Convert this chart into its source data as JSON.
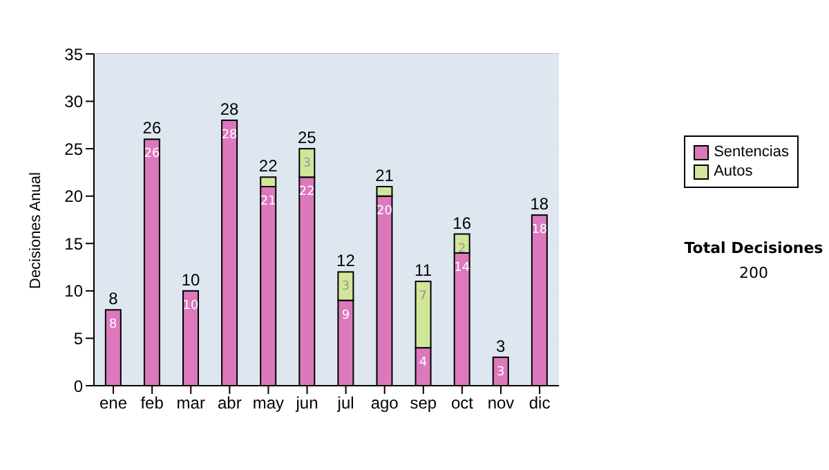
{
  "chart_data": {
    "type": "bar",
    "ylabel": "Decisiones Anual",
    "categories": [
      "ene",
      "feb",
      "mar",
      "abr",
      "may",
      "jun",
      "jul",
      "ago",
      "sep",
      "oct",
      "nov",
      "dic"
    ],
    "series": [
      {
        "name": "Sentencias",
        "color": "#dc78bc",
        "values": [
          8,
          26,
          10,
          28,
          21,
          22,
          9,
          20,
          4,
          14,
          3,
          18
        ],
        "value_labels": [
          "8",
          "26",
          "10",
          "28",
          "21",
          "22",
          "9",
          "20",
          "4",
          "14",
          "3",
          "18"
        ]
      },
      {
        "name": "Autos",
        "color": "#d2e69a",
        "values": [
          0,
          0,
          0,
          0,
          1,
          3,
          3,
          1,
          7,
          2,
          0,
          0
        ],
        "value_labels": [
          null,
          null,
          null,
          null,
          null,
          "3",
          "3",
          null,
          "7",
          "2",
          null,
          null
        ]
      }
    ],
    "stacked": true,
    "totals": [
      "8",
      "26",
      "10",
      "28",
      "22",
      "25",
      "12",
      "21",
      "11",
      "16",
      "3",
      "18"
    ],
    "ylim": [
      0,
      35
    ],
    "yticks": [
      0,
      5,
      10,
      15,
      20,
      25,
      30,
      35
    ],
    "grid": "y",
    "legend": "right",
    "annotations": [
      "Total Decisiones",
      "200"
    ]
  }
}
